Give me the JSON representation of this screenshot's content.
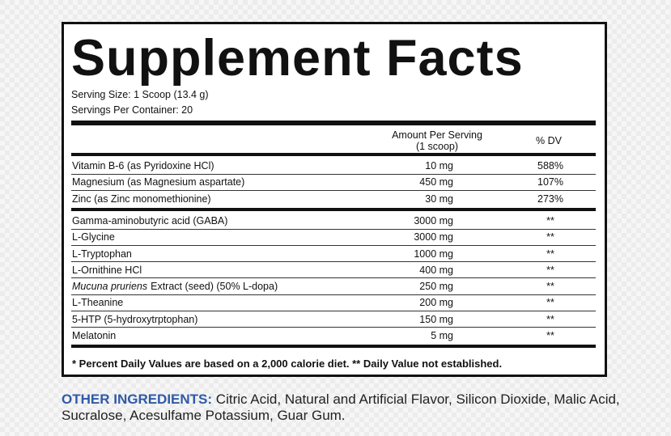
{
  "title": "Supplement Facts",
  "serving_size": "Serving Size: 1 Scoop (13.4 g)",
  "servings_per_container": "Servings Per Container: 20",
  "header": {
    "amount": "Amount Per Serving (1 scoop)",
    "dv": "% DV"
  },
  "groups": [
    [
      {
        "name": "Vitamin B-6 (as Pyridoxine HCl)",
        "amount": "10 mg",
        "dv": "588%"
      },
      {
        "name": "Magnesium (as Magnesium aspartate)",
        "amount": "450 mg",
        "dv": "107%"
      },
      {
        "name": "Zinc (as Zinc monomethionine)",
        "amount": "30 mg",
        "dv": "273%"
      }
    ],
    [
      {
        "name": "Gamma-aminobutyric acid (GABA)",
        "amount": "3000 mg",
        "dv": "**"
      },
      {
        "name": "L-Glycine",
        "amount": "3000 mg",
        "dv": "**"
      },
      {
        "name": "L-Tryptophan",
        "amount": "1000 mg",
        "dv": "**"
      },
      {
        "name": "L-Ornithine HCl",
        "amount": "400 mg",
        "dv": "**"
      },
      {
        "name_italic": "Mucuna pruriens",
        "name": "Extract (seed) (50% L-dopa)",
        "amount": "250 mg",
        "dv": "**"
      },
      {
        "name": "L-Theanine",
        "amount": "200 mg",
        "dv": "**"
      },
      {
        "name": "5-HTP (5-hydroxytrptophan)",
        "amount": "150 mg",
        "dv": "**"
      },
      {
        "name": "Melatonin",
        "amount": "5 mg",
        "dv": "**"
      }
    ]
  ],
  "footnote": "* Percent Daily Values are based on a 2,000 calorie diet. ** Daily Value not established.",
  "other_ingredients": {
    "label": "OTHER INGREDIENTS:",
    "text": "Citric Acid, Natural and Artificial Flavor, Silicon Dioxide, Malic Acid, Sucralose, Acesulfame Potassium, Guar Gum."
  }
}
